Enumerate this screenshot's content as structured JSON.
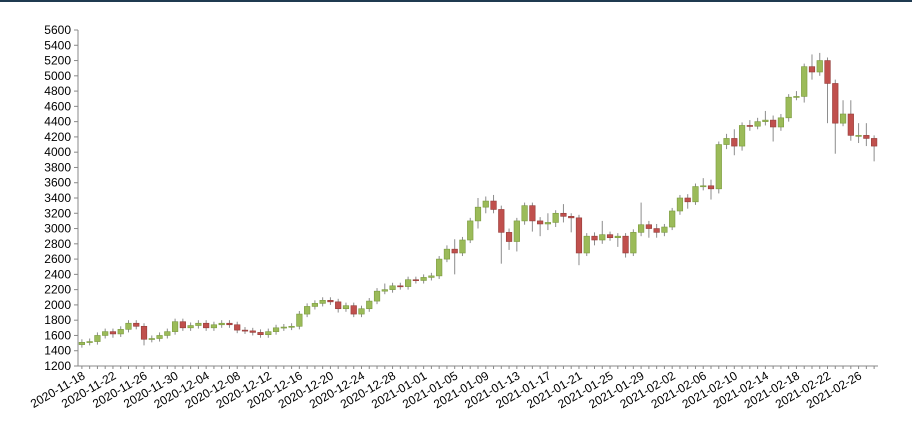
{
  "chart_data": {
    "type": "candlestick",
    "categories": [
      "2020-11-18",
      null,
      null,
      null,
      "2020-11-22",
      null,
      null,
      null,
      "2020-11-26",
      null,
      null,
      null,
      "2020-11-30",
      null,
      null,
      null,
      "2020-12-04",
      null,
      null,
      null,
      "2020-12-08",
      null,
      null,
      null,
      "2020-12-12",
      null,
      null,
      null,
      "2020-12-16",
      null,
      null,
      null,
      "2020-12-20",
      null,
      null,
      null,
      "2020-12-24",
      null,
      null,
      null,
      "2020-12-28",
      null,
      null,
      null,
      "2021-01-01",
      null,
      null,
      null,
      "2021-01-05",
      null,
      null,
      null,
      "2021-01-09",
      null,
      null,
      null,
      "2021-01-13",
      null,
      null,
      null,
      "2021-01-17",
      null,
      null,
      null,
      "2021-01-21",
      null,
      null,
      null,
      "2021-01-25",
      null,
      null,
      null,
      "2021-01-29",
      null,
      null,
      null,
      "2021-02-02",
      null,
      null,
      null,
      "2021-02-06",
      null,
      null,
      null,
      "2021-02-10",
      null,
      null,
      null,
      "2021-02-14",
      null,
      null,
      null,
      "2021-02-18",
      null,
      null,
      null,
      "2021-02-22",
      null,
      null,
      null,
      "2021-02-26",
      null,
      null
    ],
    "open": [
      1480,
      1510,
      1520,
      1600,
      1650,
      1620,
      1680,
      1760,
      1720,
      1550,
      1560,
      1600,
      1650,
      1780,
      1700,
      1730,
      1760,
      1700,
      1740,
      1760,
      1740,
      1670,
      1660,
      1640,
      1610,
      1650,
      1700,
      1710,
      1720,
      1880,
      1980,
      2020,
      2060,
      2040,
      1950,
      1990,
      1880,
      1950,
      2050,
      2180,
      2200,
      2250,
      2240,
      2330,
      2320,
      2360,
      2380,
      2600,
      2730,
      2680,
      2850,
      3100,
      3280,
      3360,
      3250,
      2950,
      2830,
      3100,
      3300,
      3100,
      3060,
      3080,
      3200,
      3160,
      3140,
      2680,
      2900,
      2850,
      2920,
      2880,
      2900,
      2680,
      2950,
      3050,
      3000,
      2950,
      3020,
      3230,
      3400,
      3350,
      3550,
      3560,
      3520,
      4100,
      4180,
      4080,
      4350,
      4340,
      4400,
      4420,
      4330,
      4450,
      4720,
      4730,
      5120,
      5050,
      5200,
      4900,
      4380,
      4500,
      4220,
      4220,
      4180
    ],
    "high": [
      1550,
      1560,
      1640,
      1690,
      1690,
      1720,
      1800,
      1800,
      1760,
      1600,
      1640,
      1690,
      1820,
      1820,
      1770,
      1800,
      1800,
      1780,
      1800,
      1800,
      1780,
      1710,
      1700,
      1680,
      1690,
      1740,
      1750,
      1760,
      1920,
      2020,
      2060,
      2100,
      2100,
      2080,
      2030,
      2030,
      1990,
      2090,
      2220,
      2280,
      2290,
      2290,
      2370,
      2370,
      2400,
      2420,
      2640,
      2780,
      2860,
      2890,
      3140,
      3400,
      3420,
      3440,
      3300,
      3000,
      3140,
      3340,
      3340,
      3150,
      3200,
      3240,
      3320,
      3200,
      3180,
      2940,
      2950,
      3100,
      2960,
      2940,
      2940,
      2990,
      3340,
      3100,
      3060,
      3060,
      3270,
      3440,
      3450,
      3590,
      3660,
      3640,
      4140,
      4240,
      4300,
      4390,
      4420,
      4450,
      4540,
      4480,
      4500,
      4760,
      4800,
      5160,
      5280,
      5300,
      5240,
      4950,
      4680,
      4680,
      4380,
      4380,
      4220
    ],
    "low": [
      1440,
      1470,
      1480,
      1560,
      1570,
      1580,
      1640,
      1680,
      1470,
      1510,
      1520,
      1560,
      1610,
      1660,
      1660,
      1690,
      1660,
      1660,
      1700,
      1700,
      1630,
      1620,
      1600,
      1570,
      1570,
      1610,
      1660,
      1670,
      1680,
      1840,
      1940,
      1980,
      2000,
      1900,
      1910,
      1840,
      1840,
      1910,
      2010,
      2140,
      2160,
      2200,
      2200,
      2280,
      2280,
      2320,
      2340,
      2560,
      2400,
      2640,
      2810,
      3000,
      3200,
      3200,
      2540,
      2720,
      2700,
      3050,
      2960,
      2900,
      2980,
      3020,
      3080,
      2950,
      2520,
      2640,
      2780,
      2800,
      2840,
      2760,
      2620,
      2640,
      2900,
      2880,
      2880,
      2900,
      2980,
      3180,
      3260,
      3310,
      3500,
      3380,
      3460,
      4040,
      3960,
      4020,
      4280,
      4300,
      4350,
      4140,
      4280,
      4400,
      4680,
      4650,
      4950,
      5000,
      4380,
      3980,
      4340,
      4150,
      4120,
      4080,
      3880
    ],
    "close": [
      1510,
      1520,
      1600,
      1650,
      1620,
      1680,
      1760,
      1720,
      1550,
      1560,
      1600,
      1650,
      1780,
      1700,
      1730,
      1760,
      1700,
      1740,
      1760,
      1740,
      1670,
      1660,
      1640,
      1610,
      1650,
      1700,
      1710,
      1720,
      1880,
      1980,
      2020,
      2060,
      2040,
      1950,
      1990,
      1880,
      1950,
      2050,
      2180,
      2200,
      2250,
      2240,
      2330,
      2320,
      2360,
      2380,
      2600,
      2730,
      2680,
      2850,
      3100,
      3280,
      3360,
      3250,
      2950,
      2830,
      3100,
      3300,
      3100,
      3060,
      3080,
      3200,
      3160,
      3140,
      2680,
      2900,
      2850,
      2920,
      2880,
      2900,
      2680,
      2950,
      3050,
      3000,
      2950,
      3020,
      3230,
      3400,
      3350,
      3550,
      3560,
      3520,
      4100,
      4180,
      4080,
      4350,
      4340,
      4400,
      4420,
      4330,
      4450,
      4720,
      4730,
      5120,
      5050,
      5200,
      4900,
      4380,
      4500,
      4220,
      4220,
      4180,
      4080
    ],
    "up_color": "#9bbb59",
    "down_color": "#c0504d",
    "ylim": [
      1200,
      5600
    ],
    "yticks": [
      1200,
      1400,
      1600,
      1800,
      2000,
      2200,
      2400,
      2600,
      2800,
      3000,
      3200,
      3400,
      3600,
      3800,
      4000,
      4200,
      4400,
      4600,
      4800,
      5000,
      5200,
      5400,
      5600
    ]
  }
}
